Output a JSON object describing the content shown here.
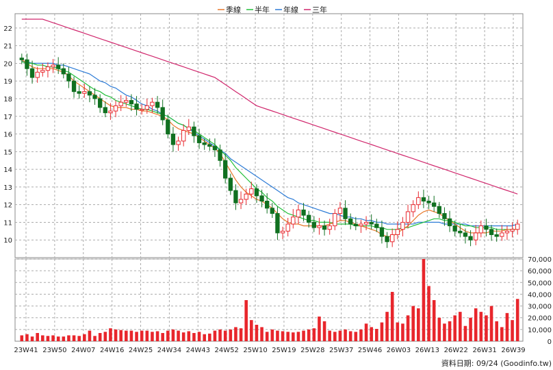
{
  "chart_data": [
    {
      "type": "candlestick",
      "panel": "price",
      "legend": [
        {
          "name": "季線",
          "color": "#e8782a"
        },
        {
          "name": "半年",
          "color": "#22c03a"
        },
        {
          "name": "年線",
          "color": "#2c7bd6"
        },
        {
          "name": "三年",
          "color": "#d0266c"
        }
      ],
      "legend_placement": "top-center",
      "grid": true,
      "ylim": [
        9,
        22.5
      ],
      "yticks": [
        10,
        11,
        12,
        13,
        14,
        15,
        16,
        17,
        18,
        19,
        20,
        21,
        22
      ],
      "x_tick_labels": [
        "23W41",
        "23W50",
        "24W07",
        "24W16",
        "24W25",
        "24W34",
        "24W43",
        "24W52",
        "25W10",
        "25W19",
        "25W28",
        "25W37",
        "25W46",
        "26W03",
        "26W13",
        "26W22",
        "26W31",
        "26W39"
      ],
      "up_color": "#e8262c",
      "down_color": "#107020",
      "close_series": [
        20.2,
        19.7,
        19.2,
        19.5,
        19.6,
        19.8,
        19.9,
        19.7,
        19.4,
        19.0,
        18.4,
        18.3,
        18.4,
        18.2,
        18.0,
        17.5,
        17.2,
        17.3,
        17.6,
        17.8,
        17.9,
        17.7,
        17.4,
        17.4,
        17.6,
        17.8,
        17.5,
        16.8,
        16.0,
        15.4,
        15.6,
        16.2,
        16.4,
        15.9,
        15.5,
        15.4,
        15.3,
        15.1,
        14.5,
        13.5,
        12.8,
        12.1,
        12.3,
        12.6,
        12.9,
        12.5,
        12.2,
        11.8,
        11.5,
        10.4,
        10.5,
        10.9,
        11.3,
        11.7,
        11.4,
        11.0,
        10.7,
        10.8,
        10.6,
        10.8,
        11.5,
        11.8,
        11.2,
        10.9,
        10.8,
        10.9,
        11.0,
        10.9,
        10.7,
        10.2,
        9.9,
        10.3,
        10.6,
        11.0,
        11.6,
        12.0,
        12.4,
        12.2,
        12.1,
        11.9,
        11.5,
        11.2,
        10.8,
        10.5,
        10.4,
        10.2,
        10.0,
        10.4,
        10.8,
        10.6,
        10.3,
        10.2,
        10.4,
        10.5,
        10.6,
        10.9
      ],
      "ma_quarter": [
        20.2,
        20.0,
        19.8,
        19.7,
        19.7,
        19.7,
        19.7,
        19.6,
        19.5,
        19.3,
        19.0,
        18.8,
        18.6,
        18.4,
        18.2,
        18.0,
        17.8,
        17.6,
        17.5,
        17.5,
        17.5,
        17.4,
        17.4,
        17.3,
        17.3,
        17.2,
        17.1,
        17.0,
        16.8,
        16.5,
        16.3,
        16.2,
        16.1,
        16.0,
        15.8,
        15.6,
        15.4,
        15.2,
        14.9,
        14.4,
        13.9,
        13.4,
        13.0,
        12.7,
        12.5,
        12.3,
        12.2,
        12.0,
        11.8,
        11.5,
        11.2,
        11.0,
        10.9,
        10.9,
        10.8,
        10.8,
        10.8,
        10.8,
        10.8,
        10.9,
        11.0,
        11.1,
        11.1,
        11.0,
        10.9,
        10.8,
        10.7,
        10.6,
        10.5,
        10.3,
        10.2,
        10.2,
        10.4,
        10.6,
        10.8,
        11.1,
        11.4,
        11.6,
        11.7,
        11.6,
        11.5,
        11.3,
        11.1,
        10.9,
        10.7,
        10.5,
        10.4,
        10.4,
        10.4,
        10.4,
        10.5,
        10.5,
        10.5,
        10.6,
        10.6,
        10.6
      ],
      "ma_half": [
        20.1,
        20.0,
        20.0,
        19.9,
        19.9,
        19.8,
        19.8,
        19.7,
        19.6,
        19.5,
        19.3,
        19.1,
        18.9,
        18.7,
        18.5,
        18.4,
        18.2,
        18.1,
        17.9,
        17.8,
        17.7,
        17.6,
        17.5,
        17.4,
        17.4,
        17.3,
        17.2,
        17.1,
        17.0,
        16.8,
        16.6,
        16.5,
        16.3,
        16.2,
        16.0,
        15.8,
        15.6,
        15.4,
        15.1,
        14.8,
        14.5,
        14.1,
        13.8,
        13.5,
        13.2,
        12.9,
        12.7,
        12.4,
        12.2,
        11.9,
        11.7,
        11.5,
        11.4,
        11.3,
        11.2,
        11.1,
        11.1,
        11.0,
        11.0,
        11.0,
        10.9,
        10.9,
        10.9,
        10.9,
        10.8,
        10.8,
        10.8,
        10.8,
        10.7,
        10.7,
        10.6,
        10.6,
        10.6,
        10.7,
        10.7,
        10.8,
        10.9,
        11.0,
        11.1,
        11.2,
        11.2,
        11.1,
        11.1,
        11.0,
        10.9,
        10.8,
        10.8,
        10.7,
        10.7,
        10.7,
        10.7,
        10.6,
        10.6,
        10.6,
        10.6,
        10.6
      ],
      "ma_year": [
        20.1,
        20.1,
        20.0,
        20.0,
        20.0,
        20.0,
        20.0,
        19.9,
        19.9,
        19.8,
        19.7,
        19.6,
        19.5,
        19.4,
        19.2,
        19.0,
        18.9,
        18.7,
        18.6,
        18.4,
        18.2,
        18.1,
        17.9,
        17.7,
        17.6,
        17.4,
        17.3,
        17.1,
        17.0,
        16.8,
        16.6,
        16.5,
        16.3,
        16.1,
        15.9,
        15.7,
        15.5,
        15.3,
        15.1,
        14.9,
        14.6,
        14.4,
        14.2,
        14.0,
        13.8,
        13.6,
        13.4,
        13.2,
        13.0,
        12.8,
        12.6,
        12.4,
        12.3,
        12.1,
        12.0,
        11.9,
        11.8,
        11.7,
        11.6,
        11.5,
        11.5,
        11.4,
        11.3,
        11.3,
        11.2,
        11.2,
        11.1,
        11.1,
        11.0,
        11.0,
        10.9,
        10.9,
        10.9,
        10.9,
        10.9,
        10.9,
        11.0,
        11.0,
        11.0,
        11.0,
        11.0,
        10.9,
        10.9,
        10.9,
        10.9,
        10.9,
        10.8,
        10.8,
        10.8,
        10.8,
        10.8,
        10.8,
        10.8,
        10.8,
        10.8,
        10.9
      ],
      "ma_3year": [
        22.5,
        22.5,
        22.5,
        22.5,
        22.5,
        22.4,
        22.3,
        22.2,
        22.1,
        22.0,
        21.9,
        21.8,
        21.7,
        21.6,
        21.5,
        21.4,
        21.3,
        21.2,
        21.1,
        21.0,
        20.9,
        20.8,
        20.7,
        20.6,
        20.5,
        20.4,
        20.3,
        20.2,
        20.1,
        20.0,
        19.9,
        19.8,
        19.7,
        19.6,
        19.5,
        19.4,
        19.3,
        19.2,
        19.0,
        18.8,
        18.6,
        18.4,
        18.2,
        18.0,
        17.8,
        17.6,
        17.5,
        17.4,
        17.3,
        17.2,
        17.1,
        17.0,
        16.9,
        16.8,
        16.7,
        16.6,
        16.5,
        16.4,
        16.3,
        16.2,
        16.1,
        16.0,
        15.9,
        15.8,
        15.7,
        15.6,
        15.5,
        15.4,
        15.3,
        15.2,
        15.1,
        15.0,
        14.9,
        14.8,
        14.7,
        14.6,
        14.5,
        14.4,
        14.3,
        14.2,
        14.1,
        14.0,
        13.9,
        13.8,
        13.7,
        13.6,
        13.5,
        13.4,
        13.3,
        13.2,
        13.1,
        13.0,
        12.9,
        12.8,
        12.7,
        12.6
      ],
      "note": "Approximate values read from the weekly candlestick chart."
    },
    {
      "type": "bar",
      "panel": "volume",
      "ylim": [
        0,
        70000
      ],
      "yticks": [
        "0",
        "10,000",
        "20,000",
        "30,000",
        "40,000",
        "50,000",
        "60,000",
        "70,000"
      ],
      "bar_color": "#e8262c",
      "values": [
        5000,
        6000,
        4000,
        7000,
        5000,
        4500,
        5000,
        4000,
        4000,
        5000,
        5000,
        4500,
        6000,
        9000,
        4500,
        7000,
        8000,
        11000,
        10000,
        9500,
        9000,
        9000,
        8000,
        9000,
        9000,
        8000,
        8500,
        7000,
        9000,
        10000,
        9000,
        7500,
        8500,
        7000,
        8000,
        6000,
        6500,
        9000,
        10000,
        9000,
        10000,
        12000,
        11000,
        35000,
        18000,
        14000,
        12000,
        8000,
        10000,
        9000,
        8500,
        8000,
        7500,
        8000,
        9000,
        10000,
        11000,
        21000,
        17000,
        9000,
        8000,
        9000,
        10000,
        8500,
        8000,
        10000,
        15000,
        12000,
        10500,
        16000,
        25000,
        42000,
        16000,
        15000,
        22000,
        30000,
        28000,
        70000,
        47000,
        35000,
        20000,
        15000,
        17000,
        22000,
        25000,
        13000,
        20000,
        28000,
        25000,
        22000,
        30000,
        17000,
        12000,
        24000,
        18000,
        36000
      ],
      "ylabel": ""
    }
  ],
  "footer": {
    "credit": "資料日期: 09/24  (Goodinfo.tw)"
  }
}
